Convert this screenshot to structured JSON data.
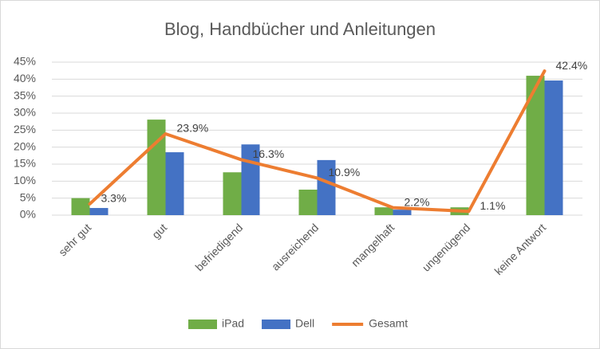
{
  "chart_data": {
    "type": "bar-line",
    "title": "Blog, Handbücher und Anleitungen",
    "categories": [
      "sehr gut",
      "gut",
      "befriedigend",
      "ausreichend",
      "mangelhaft",
      "ungenügend",
      "keine Antwort"
    ],
    "series": [
      {
        "name": "iPad",
        "type": "bar",
        "color": "#70ad47",
        "values": [
          5.0,
          28.1,
          12.6,
          7.5,
          2.3,
          2.3,
          41.0
        ]
      },
      {
        "name": "Dell",
        "type": "bar",
        "color": "#4472c4",
        "values": [
          2.1,
          18.5,
          20.8,
          16.2,
          1.6,
          0,
          39.6
        ]
      },
      {
        "name": "Gesamt",
        "type": "line",
        "color": "#ed7d31",
        "values": [
          3.3,
          23.9,
          16.3,
          10.9,
          2.2,
          1.1,
          42.4
        ],
        "value_labels": [
          "3.3%",
          "23.9%",
          "16.3%",
          "10.9%",
          "2.2%",
          "1.1%",
          "42.4%"
        ]
      }
    ],
    "ylim": [
      0,
      45
    ],
    "yticks": [
      {
        "value": 0,
        "label": "0%"
      },
      {
        "value": 5,
        "label": "5%"
      },
      {
        "value": 10,
        "label": "10%"
      },
      {
        "value": 15,
        "label": "15%"
      },
      {
        "value": 20,
        "label": "20%"
      },
      {
        "value": 25,
        "label": "25%"
      },
      {
        "value": 30,
        "label": "30%"
      },
      {
        "value": 35,
        "label": "35%"
      },
      {
        "value": 40,
        "label": "40%"
      },
      {
        "value": 45,
        "label": "45%"
      }
    ],
    "grid": true,
    "legend": "bottom"
  }
}
